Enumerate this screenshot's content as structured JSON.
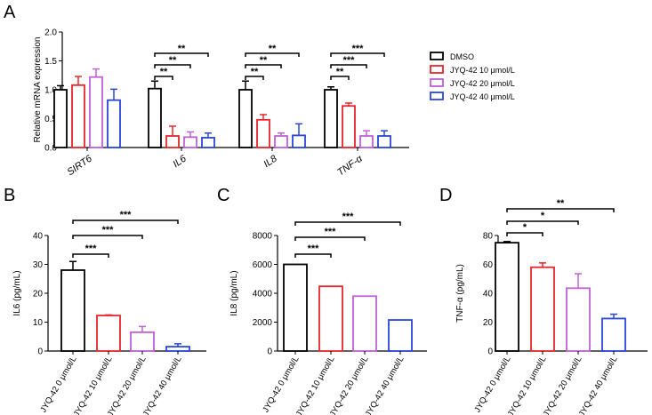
{
  "figure": {
    "legend": {
      "entries": [
        {
          "label": "DMSO",
          "color": "#000000"
        },
        {
          "label": "JYQ-42 10 μmol/L",
          "color": "#e8262b"
        },
        {
          "label": "JYQ-42 20 μmol/L",
          "color": "#c061d6"
        },
        {
          "label": "JYQ-42 40 μmol/L",
          "color": "#2a45d9"
        }
      ]
    }
  },
  "chart_data": [
    {
      "panel": "A",
      "type": "bar",
      "ylabel": "Relative mRNA expression",
      "ylim": [
        0,
        2.0
      ],
      "yticks": [
        "0.0",
        "0.5",
        "1.0",
        "1.5",
        "2.0"
      ],
      "yticks_v": [
        0,
        0.5,
        1.0,
        1.5,
        2.0
      ],
      "categories": [
        "SIRT6",
        "IL6",
        "IL8",
        "TNF-α"
      ],
      "series": [
        {
          "name": "DMSO",
          "color": "#000000",
          "values": [
            1.0,
            1.02,
            1.0,
            1.0
          ],
          "errors": [
            0.07,
            0.13,
            0.15,
            0.05
          ]
        },
        {
          "name": "JYQ-42 10 μmol/L",
          "color": "#e8262b",
          "values": [
            1.08,
            0.2,
            0.48,
            0.72
          ],
          "errors": [
            0.15,
            0.17,
            0.09,
            0.05
          ]
        },
        {
          "name": "JYQ-42 20 μmol/L",
          "color": "#c061d6",
          "values": [
            1.22,
            0.18,
            0.2,
            0.2
          ],
          "errors": [
            0.14,
            0.09,
            0.05,
            0.09
          ]
        },
        {
          "name": "JYQ-42 40 μmol/L",
          "color": "#2a45d9",
          "values": [
            0.82,
            0.17,
            0.21,
            0.2
          ],
          "errors": [
            0.19,
            0.08,
            0.2,
            0.09
          ]
        }
      ],
      "significance": [
        {
          "group": 1,
          "to": 1,
          "label": "**"
        },
        {
          "group": 1,
          "to": 2,
          "label": "**"
        },
        {
          "group": 1,
          "to": 3,
          "label": "**"
        },
        {
          "group": 2,
          "to": 1,
          "label": "**"
        },
        {
          "group": 2,
          "to": 2,
          "label": "**"
        },
        {
          "group": 2,
          "to": 3,
          "label": "**"
        },
        {
          "group": 3,
          "to": 1,
          "label": "**"
        },
        {
          "group": 3,
          "to": 2,
          "label": "***"
        },
        {
          "group": 3,
          "to": 3,
          "label": "***"
        }
      ]
    },
    {
      "panel": "B",
      "type": "bar",
      "ylabel": "IL6 (pg/mL)",
      "ylim": [
        0,
        40
      ],
      "yticks": [
        "0",
        "10",
        "20",
        "30",
        "40"
      ],
      "yticks_v": [
        0,
        10,
        20,
        30,
        40
      ],
      "categories": [
        "JYQ-42 0  μmol/L",
        "JYQ-42 10  μmol/L",
        "JYQ-42 20  μmol/L",
        "JYQ-42 40  μmol/L"
      ],
      "colors": [
        "#000000",
        "#e8262b",
        "#c061d6",
        "#2a45d9"
      ],
      "values": [
        28,
        12.3,
        6.5,
        1.5
      ],
      "errors": [
        3,
        0.2,
        2,
        1
      ],
      "significance": [
        {
          "to": 1,
          "label": "***"
        },
        {
          "to": 2,
          "label": "***"
        },
        {
          "to": 3,
          "label": "***"
        }
      ]
    },
    {
      "panel": "C",
      "type": "bar",
      "ylabel": "IL8 (pg/mL)",
      "ylim": [
        0,
        8000
      ],
      "yticks": [
        "0",
        "2000",
        "4000",
        "6000",
        "8000"
      ],
      "yticks_v": [
        0,
        2000,
        4000,
        6000,
        8000
      ],
      "categories": [
        "JYQ-42 0  μmol/L",
        "JYQ-42 10  μmol/L",
        "JYQ-42 20  μmol/L",
        "JYQ-42 40  μmol/L"
      ],
      "colors": [
        "#000000",
        "#e8262b",
        "#c061d6",
        "#2a45d9"
      ],
      "values": [
        6000,
        4480,
        3800,
        2150
      ],
      "errors": [
        0,
        0,
        0,
        0
      ],
      "significance": [
        {
          "to": 1,
          "label": "***"
        },
        {
          "to": 2,
          "label": "***"
        },
        {
          "to": 3,
          "label": "***"
        }
      ]
    },
    {
      "panel": "D",
      "type": "bar",
      "ylabel": "TNF-α (pg/mL)",
      "ylim": [
        0,
        80
      ],
      "yticks": [
        "0",
        "20",
        "40",
        "60",
        "80"
      ],
      "yticks_v": [
        0,
        20,
        40,
        60,
        80
      ],
      "categories": [
        "JYQ-42 0  μmol/L",
        "JYQ-42 10  μmol/L",
        "JYQ-42 20  μmol/L",
        "JYQ-42 40  μmol/L"
      ],
      "colors": [
        "#000000",
        "#e8262b",
        "#c061d6",
        "#2a45d9"
      ],
      "values": [
        75,
        58,
        43.5,
        22.5
      ],
      "errors": [
        0.8,
        3,
        10,
        3
      ],
      "significance": [
        {
          "to": 1,
          "label": "*"
        },
        {
          "to": 2,
          "label": "*"
        },
        {
          "to": 3,
          "label": "**"
        }
      ]
    }
  ]
}
